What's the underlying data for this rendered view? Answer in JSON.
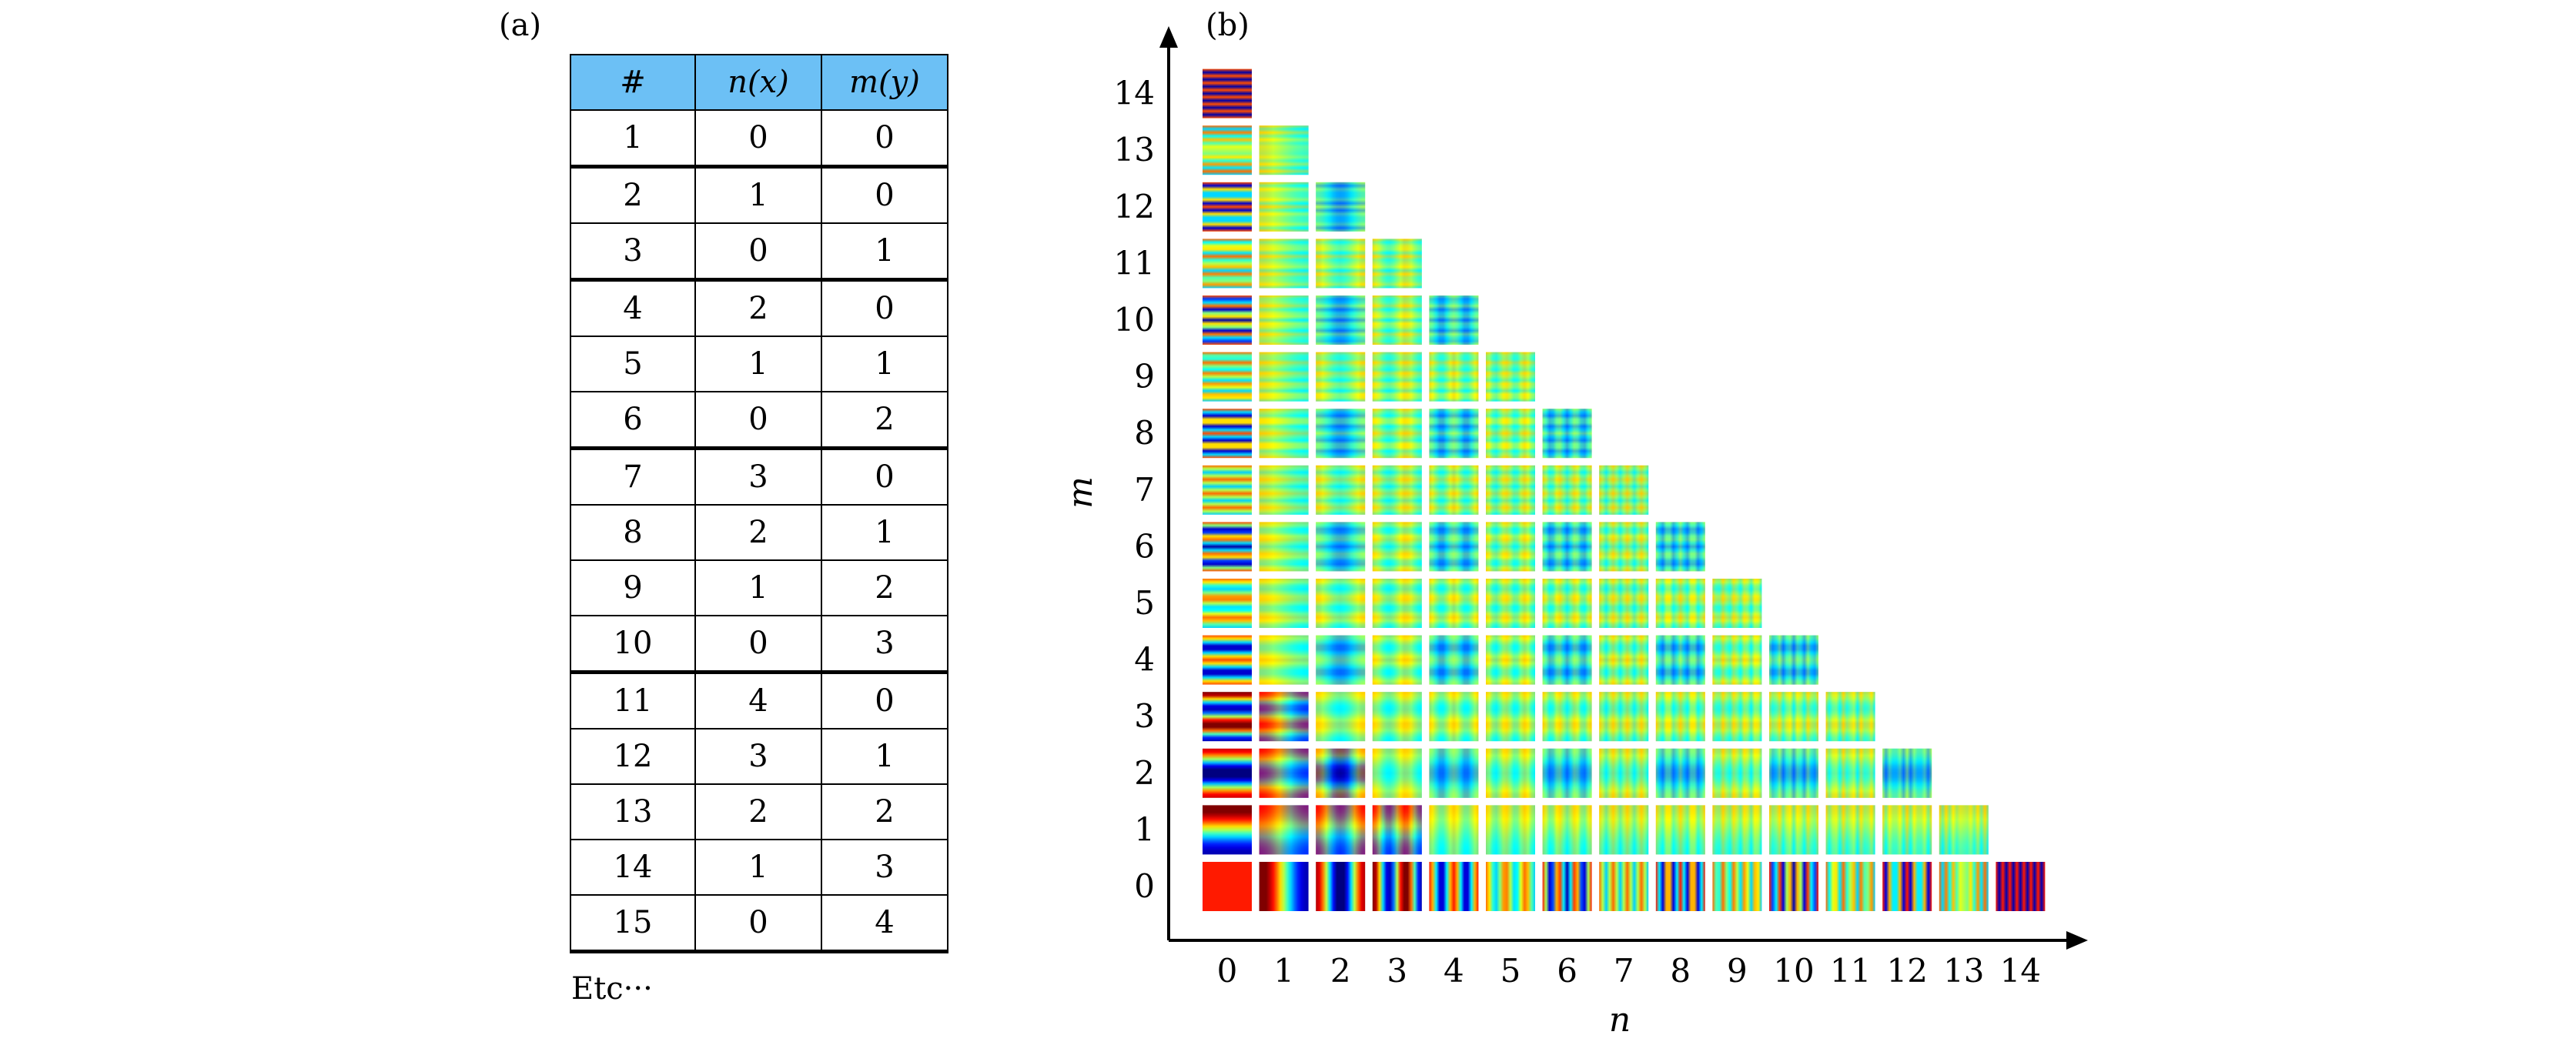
{
  "panel_a": {
    "label": "(a)",
    "headers": [
      "#",
      "n(x)",
      "m(y)"
    ],
    "rows": [
      [
        "1",
        "0",
        "0"
      ],
      [
        "2",
        "1",
        "0"
      ],
      [
        "3",
        "0",
        "1"
      ],
      [
        "4",
        "2",
        "0"
      ],
      [
        "5",
        "1",
        "1"
      ],
      [
        "6",
        "0",
        "2"
      ],
      [
        "7",
        "3",
        "0"
      ],
      [
        "8",
        "2",
        "1"
      ],
      [
        "9",
        "1",
        "2"
      ],
      [
        "10",
        "0",
        "3"
      ],
      [
        "11",
        "4",
        "0"
      ],
      [
        "12",
        "3",
        "1"
      ],
      [
        "13",
        "2",
        "2"
      ],
      [
        "14",
        "1",
        "3"
      ],
      [
        "15",
        "0",
        "4"
      ]
    ],
    "group_ends": [
      1,
      3,
      6,
      10,
      15
    ],
    "footer": "Etc···"
  },
  "panel_b": {
    "label": "(b)",
    "x_title": "n",
    "y_title": "m",
    "x_ticks": [
      "0",
      "1",
      "2",
      "3",
      "4",
      "5",
      "6",
      "7",
      "8",
      "9",
      "10",
      "11",
      "12",
      "13",
      "14"
    ],
    "y_ticks": [
      "0",
      "1",
      "2",
      "3",
      "4",
      "5",
      "6",
      "7",
      "8",
      "9",
      "10",
      "11",
      "12",
      "13",
      "14"
    ],
    "constraint": "n + m <= 14",
    "colormap": "jet"
  },
  "chart_data": {
    "type": "heatmap",
    "title": "",
    "xlabel": "n",
    "ylabel": "m",
    "x": [
      0,
      1,
      2,
      3,
      4,
      5,
      6,
      7,
      8,
      9,
      10,
      11,
      12,
      13,
      14
    ],
    "y": [
      0,
      1,
      2,
      3,
      4,
      5,
      6,
      7,
      8,
      9,
      10,
      11,
      12,
      13,
      14
    ],
    "cells": "mode images shown for all (n, m) with n + m <= 14",
    "colormap": "jet"
  }
}
